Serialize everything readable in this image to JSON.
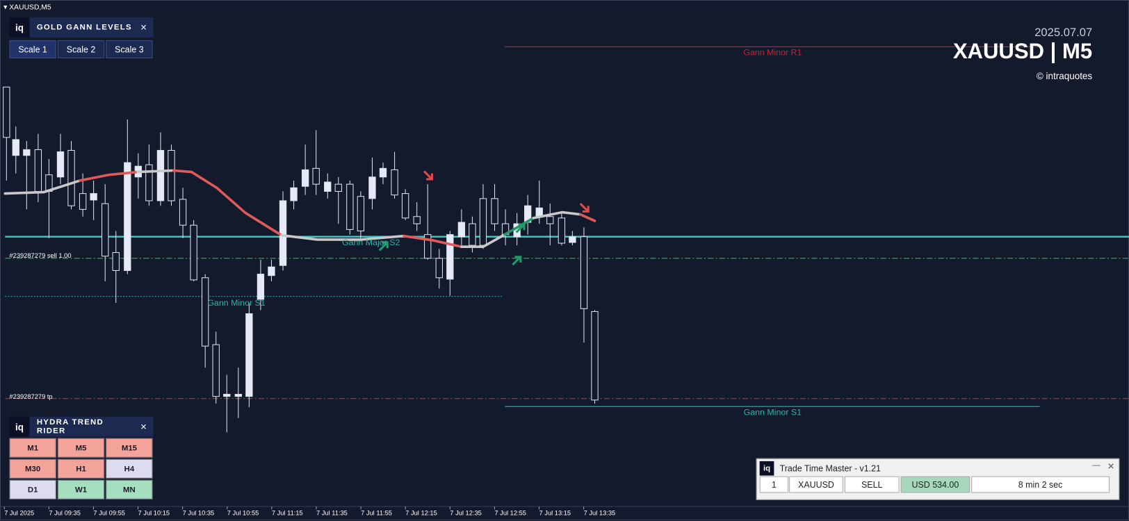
{
  "window": {
    "title": "XAUUSD,M5"
  },
  "gann_panel": {
    "logo": "iq",
    "title": "GOLD GANN LEVELS",
    "close": "×",
    "scales": [
      "Scale 1",
      "Scale 2",
      "Scale 3"
    ]
  },
  "header": {
    "date": "2025.07.07",
    "symbol": "XAUUSD | M5",
    "copyright": "© intraquotes"
  },
  "levels": [
    "Gann Minor R1",
    "Gann Major S2",
    "Gann Minor S1",
    "Gann Minor S1"
  ],
  "orders": [
    "#239287279 sell 1.00",
    "#239287279 tp"
  ],
  "trend_panel": {
    "logo": "iq",
    "title": "HYDRA TREND RIDER",
    "close": "×",
    "cells": [
      {
        "label": "M1",
        "color": "#f4a39a"
      },
      {
        "label": "M5",
        "color": "#f4a39a"
      },
      {
        "label": "M15",
        "color": "#f4a39a"
      },
      {
        "label": "M30",
        "color": "#f4a39a"
      },
      {
        "label": "H1",
        "color": "#f4a39a"
      },
      {
        "label": "H4",
        "color": "#dddcee"
      },
      {
        "label": "D1",
        "color": "#dddcee"
      },
      {
        "label": "W1",
        "color": "#a6dfbf"
      },
      {
        "label": "MN",
        "color": "#a6dfbf"
      }
    ]
  },
  "trade_panel": {
    "logo": "iq",
    "title": "Trade Time Master - v1.21",
    "minimize": "—",
    "close": "✕",
    "fields": [
      "1",
      "XAUUSD",
      "SELL",
      "USD 534.00",
      "8 min 2 sec"
    ]
  },
  "time_axis": [
    "7 Jul 2025",
    "7 Jul 09:35",
    "7 Jul 09:55",
    "7 Jul 10:15",
    "7 Jul 10:35",
    "7 Jul 10:55",
    "7 Jul 11:15",
    "7 Jul 11:35",
    "7 Jul 11:55",
    "7 Jul 12:15",
    "7 Jul 12:35",
    "7 Jul 12:55",
    "7 Jul 13:15",
    "7 Jul 13:35"
  ]
}
